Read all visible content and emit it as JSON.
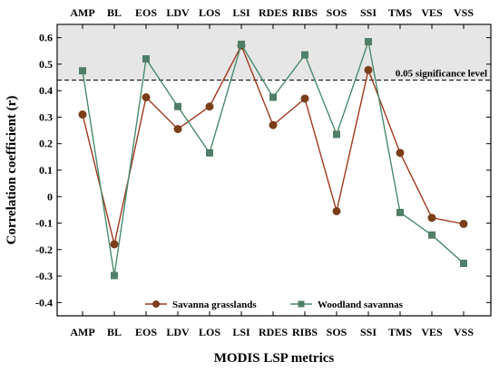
{
  "chart_data": {
    "type": "line",
    "title": "",
    "xlabel": "MODIS LSP metrics",
    "ylabel": "Correlation coefficient (r)",
    "categories": [
      "AMP",
      "BL",
      "EOS",
      "LDV",
      "LOS",
      "LSI",
      "RDES",
      "RIBS",
      "SOS",
      "SSI",
      "TMS",
      "VES",
      "VSS"
    ],
    "ylim": [
      -0.45,
      0.65
    ],
    "yticks": [
      -0.4,
      -0.3,
      -0.2,
      -0.1,
      0,
      0.1,
      0.2,
      0.3,
      0.4,
      0.5,
      0.6
    ],
    "ytick_labels": [
      "-0.4",
      "-0.3",
      "-0.2",
      "-0.1",
      "0",
      "0.1",
      "0.2",
      "0.3",
      "0.4",
      "0.5",
      "0.6"
    ],
    "significance": {
      "value": 0.44,
      "label": "0.05 significance level"
    },
    "shaded_region_color": "#e6e6e6",
    "grid": false,
    "legend_position": "bottom-center",
    "series": [
      {
        "name": "Savanna grasslands",
        "color": "#a0391e",
        "marker": "circle",
        "marker_color": "#7a3e1a",
        "values": [
          0.31,
          -0.18,
          0.375,
          0.255,
          0.34,
          0.57,
          0.27,
          0.37,
          -0.055,
          0.478,
          0.165,
          -0.08,
          -0.103
        ]
      },
      {
        "name": "Woodland savannas",
        "color": "#4a8a6c",
        "marker": "square",
        "marker_color": "#4f7f68",
        "values": [
          0.475,
          -0.298,
          0.52,
          0.34,
          0.165,
          0.575,
          0.375,
          0.535,
          0.235,
          0.585,
          -0.06,
          -0.145,
          -0.252
        ]
      }
    ]
  }
}
